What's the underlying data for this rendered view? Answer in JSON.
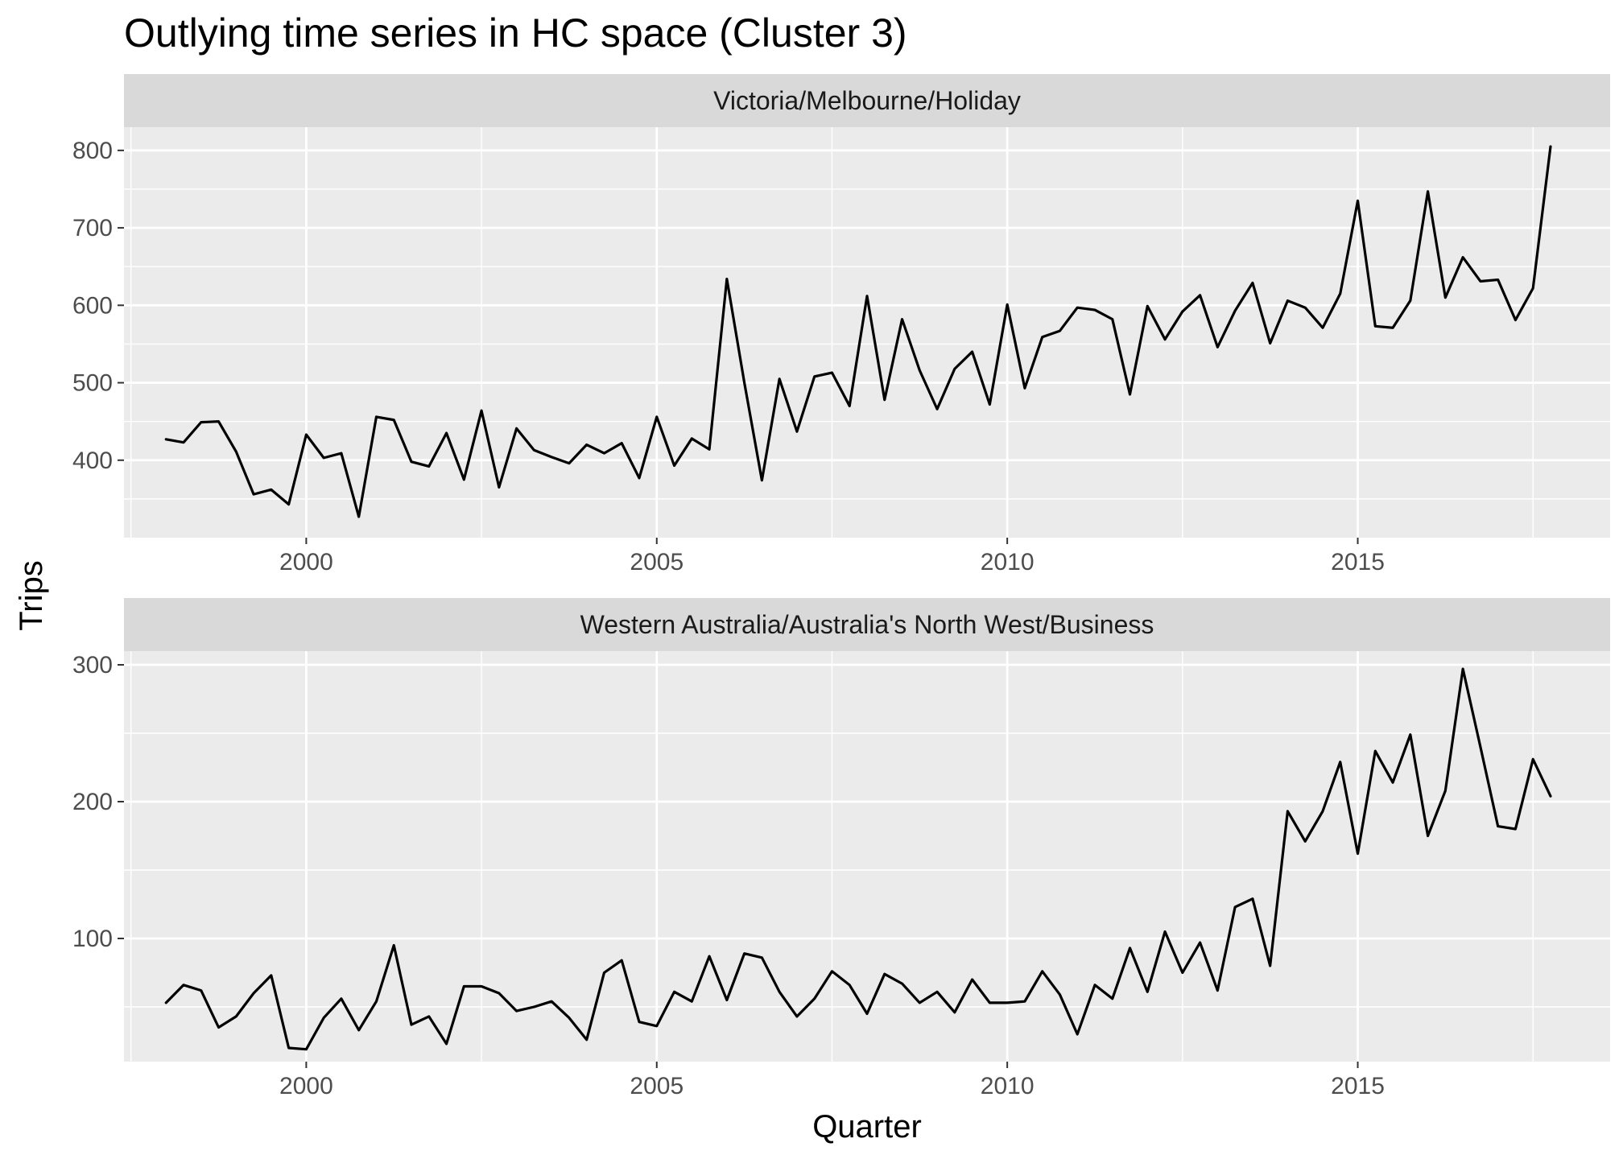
{
  "chart_data": {
    "type": "line",
    "title": "Outlying time series in HC space (Cluster 3)",
    "xlabel": "Quarter",
    "ylabel": "Trips",
    "grid": true,
    "legend": "none",
    "x_start": 1998.0,
    "x_step": 0.25,
    "xlim": [
      1997.4,
      2018.6
    ],
    "x_ticks": [
      2000,
      2005,
      2010,
      2015
    ],
    "x_tick_labels": [
      "2000",
      "2005",
      "2010",
      "2015"
    ],
    "panels": [
      {
        "strip_label": "Victoria/Melbourne/Holiday",
        "ylim": [
          300,
          830
        ],
        "y_ticks": [
          400,
          500,
          600,
          700,
          800
        ],
        "y_tick_labels": [
          "400",
          "500",
          "600",
          "700",
          "800"
        ],
        "series": [
          {
            "color": "#000000",
            "values": [
              427,
              423,
              449,
              450,
              411,
              356,
              362,
              343,
              433,
              403,
              409,
              327,
              456,
              452,
              398,
              392,
              435,
              375,
              464,
              365,
              441,
              413,
              404,
              396,
              420,
              409,
              422,
              377,
              456,
              393,
              428,
              414,
              634,
              500,
              374,
              505,
              437,
              508,
              513,
              470,
              612,
              478,
              582,
              516,
              466,
              518,
              540,
              472,
              601,
              493,
              559,
              567,
              597,
              594,
              582,
              485,
              599,
              556,
              592,
              613,
              546,
              593,
              629,
              551,
              606,
              597,
              571,
              615,
              735,
              573,
              571,
              606,
              747,
              610,
              662,
              631,
              633,
              581,
              622,
              805
            ]
          }
        ]
      },
      {
        "strip_label": "Western Australia/Australia's North West/Business",
        "ylim": [
          10,
          310
        ],
        "y_ticks": [
          100,
          200,
          300
        ],
        "y_tick_labels": [
          "100",
          "200",
          "300"
        ],
        "series": [
          {
            "color": "#000000",
            "values": [
              53,
              66,
              62,
              35,
              43,
              60,
              73,
              20,
              19,
              42,
              56,
              33,
              54,
              95,
              37,
              43,
              23,
              65,
              65,
              60,
              47,
              50,
              54,
              42,
              26,
              75,
              84,
              39,
              36,
              61,
              54,
              87,
              55,
              89,
              86,
              61,
              43,
              56,
              76,
              66,
              45,
              74,
              67,
              53,
              61,
              46,
              70,
              53,
              53,
              54,
              76,
              59,
              30,
              66,
              56,
              93,
              61,
              105,
              75,
              97,
              62,
              123,
              129,
              80,
              193,
              171,
              193,
              229,
              162,
              237,
              214,
              249,
              175,
              208,
              297,
              240,
              182,
              180,
              231,
              204
            ]
          }
        ]
      }
    ]
  }
}
